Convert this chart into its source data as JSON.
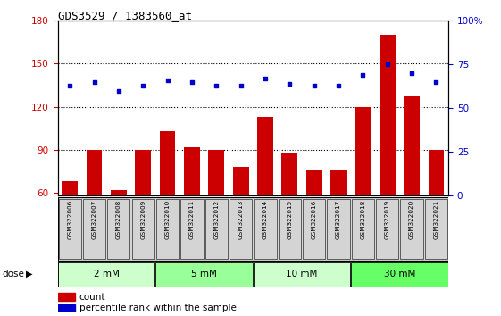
{
  "title": "GDS3529 / 1383560_at",
  "samples": [
    "GSM322006",
    "GSM322007",
    "GSM322008",
    "GSM322009",
    "GSM322010",
    "GSM322011",
    "GSM322012",
    "GSM322013",
    "GSM322014",
    "GSM322015",
    "GSM322016",
    "GSM322017",
    "GSM322018",
    "GSM322019",
    "GSM322020",
    "GSM322021"
  ],
  "count": [
    68,
    90,
    62,
    90,
    103,
    92,
    90,
    78,
    113,
    88,
    76,
    76,
    120,
    170,
    128,
    90
  ],
  "percentile": [
    63,
    65,
    60,
    63,
    66,
    65,
    63,
    63,
    67,
    64,
    63,
    63,
    69,
    75,
    70,
    65
  ],
  "doses": [
    {
      "label": "2 mM",
      "start": 0,
      "end": 3,
      "color": "#ccffcc"
    },
    {
      "label": "5 mM",
      "start": 4,
      "end": 7,
      "color": "#99ff99"
    },
    {
      "label": "10 mM",
      "start": 8,
      "end": 11,
      "color": "#ccffcc"
    },
    {
      "label": "30 mM",
      "start": 12,
      "end": 15,
      "color": "#66ff66"
    }
  ],
  "bar_color": "#cc0000",
  "dot_color": "#0000cc",
  "ylim_left": [
    58,
    180
  ],
  "yticks_left": [
    60,
    90,
    120,
    150,
    180
  ],
  "ylim_right": [
    0,
    100
  ],
  "yticks_right": [
    0,
    25,
    50,
    75,
    100
  ],
  "legend_count_label": "count",
  "legend_pct_label": "percentile rank within the sample"
}
